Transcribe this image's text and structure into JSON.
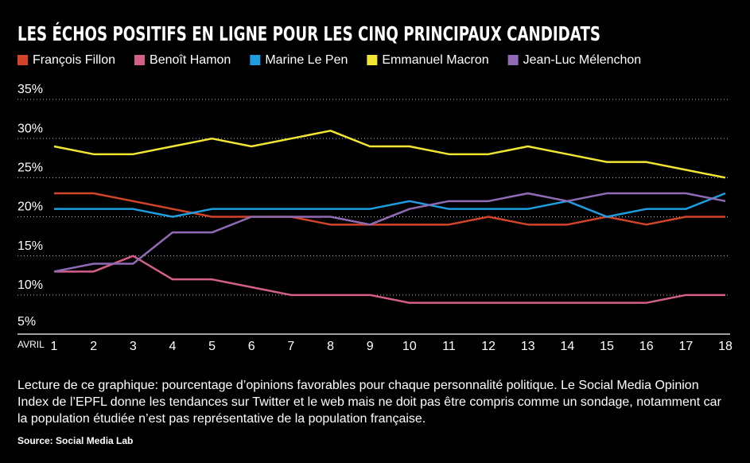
{
  "chart_data": {
    "type": "line",
    "title": "LES ÉCHOS POSITIFS EN LIGNE POUR LES CINQ PRINCIPAUX CANDIDATS",
    "xlabel": "AVRIL",
    "categories": [
      "1",
      "2",
      "3",
      "4",
      "5",
      "6",
      "7",
      "8",
      "9",
      "10",
      "11",
      "12",
      "13",
      "14",
      "15",
      "16",
      "17",
      "18"
    ],
    "series": [
      {
        "name": "François Fillon",
        "color": "#d2452a",
        "values": [
          23,
          23,
          22,
          21,
          20,
          20,
          20,
          19,
          19,
          19,
          19,
          20,
          19,
          19,
          20,
          19,
          20,
          20
        ]
      },
      {
        "name": "Benoît Hamon",
        "color": "#d45f8a",
        "values": [
          13,
          13,
          15,
          12,
          12,
          11,
          10,
          10,
          10,
          9,
          9,
          9,
          9,
          9,
          9,
          9,
          10,
          10
        ]
      },
      {
        "name": "Marine Le Pen",
        "color": "#1e9ee0",
        "values": [
          21,
          21,
          21,
          20,
          21,
          21,
          21,
          21,
          21,
          22,
          21,
          21,
          21,
          22,
          20,
          21,
          21,
          23
        ]
      },
      {
        "name": "Emmanuel Macron",
        "color": "#f2e632",
        "values": [
          29,
          28,
          28,
          29,
          30,
          29,
          30,
          31,
          29,
          29,
          28,
          28,
          29,
          28,
          27,
          27,
          26,
          25
        ]
      },
      {
        "name": "Jean-Luc Mélenchon",
        "color": "#8f6bb5",
        "values": [
          13,
          14,
          14,
          18,
          18,
          20,
          20,
          20,
          19,
          21,
          22,
          22,
          23,
          22,
          23,
          23,
          23,
          22
        ]
      }
    ],
    "ylim": [
      5,
      35
    ],
    "yticks": [
      {
        "value": 5,
        "label": "5%"
      },
      {
        "value": 10,
        "label": "10%"
      },
      {
        "value": 15,
        "label": "15%"
      },
      {
        "value": 20,
        "label": "20%"
      },
      {
        "value": 25,
        "label": "25%"
      },
      {
        "value": 30,
        "label": "30%"
      },
      {
        "value": 35,
        "label": "35%"
      }
    ],
    "grid": true,
    "note": "Lecture de ce graphique: pourcentage d’opinions favorables pour chaque personnalité politique. Le Social Media Opinion Index de l’EPFL donne les tendances sur Twitter et le web mais ne doit pas être compris comme un sondage, notamment car la population étudiée n’est pas représentative de la population française.",
    "source": "Source: Social Media Lab"
  }
}
